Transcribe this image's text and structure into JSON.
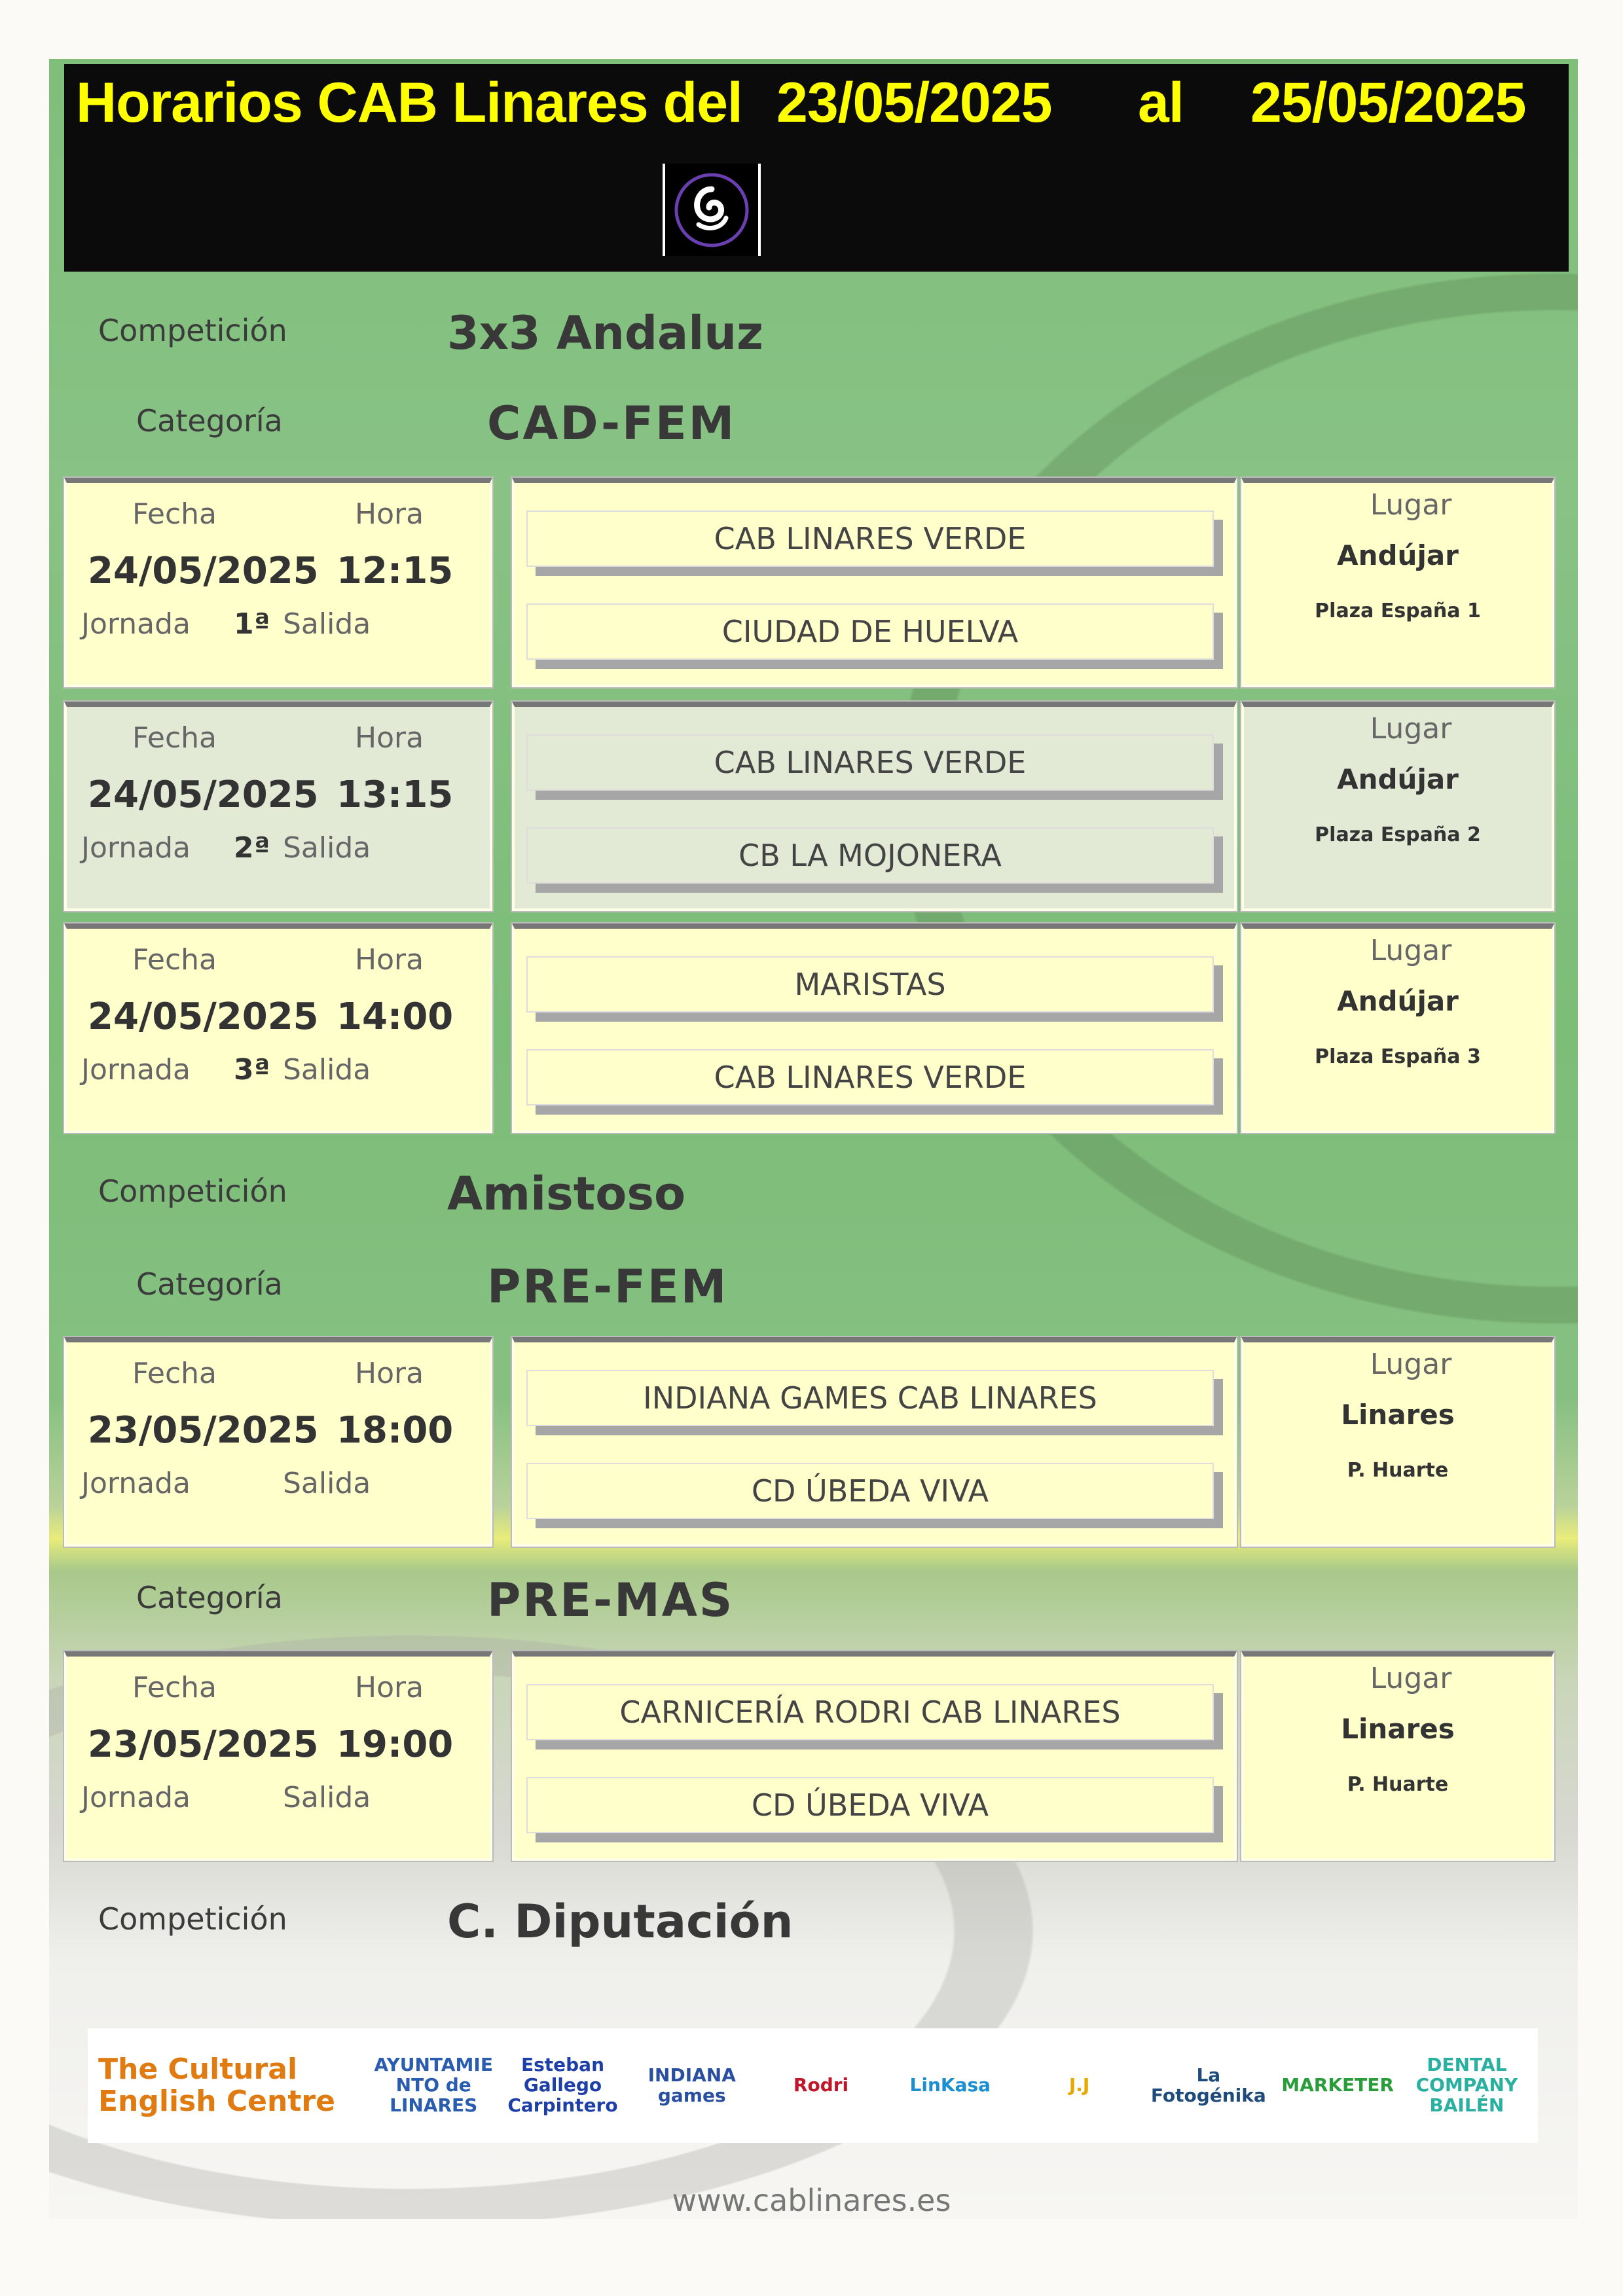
{
  "header": {
    "title": "Horarios CAB Linares del",
    "date_from": "23/05/2025",
    "al": "al",
    "date_to": "25/05/2025",
    "logo": "club-logo-icon"
  },
  "labels": {
    "competicion": "Competición",
    "categoria": "Categoría",
    "fecha": "Fecha",
    "hora": "Hora",
    "jornada": "Jornada",
    "salida": "Salida",
    "lugar": "Lugar"
  },
  "sections": [
    {
      "type": "competicion",
      "value": "3x3 Andaluz"
    },
    {
      "type": "categoria",
      "value": "CAD-FEM"
    },
    {
      "type": "match",
      "fecha": "24/05/2025",
      "hora": "12:15",
      "jornada": "1ª",
      "home": "CAB LINARES VERDE",
      "away": "CIUDAD DE HUELVA",
      "city": "Andújar",
      "venue": "Plaza España 1"
    },
    {
      "type": "match",
      "fecha": "24/05/2025",
      "hora": "13:15",
      "jornada": "2ª",
      "home": "CAB LINARES VERDE",
      "away": "CB LA MOJONERA",
      "city": "Andújar",
      "venue": "Plaza España 2",
      "alt": true
    },
    {
      "type": "match",
      "fecha": "24/05/2025",
      "hora": "14:00",
      "jornada": "3ª",
      "home": "MARISTAS",
      "away": "CAB LINARES VERDE",
      "city": "Andújar",
      "venue": "Plaza España 3"
    },
    {
      "type": "competicion",
      "value": "Amistoso"
    },
    {
      "type": "categoria",
      "value": "PRE-FEM"
    },
    {
      "type": "match",
      "fecha": "23/05/2025",
      "hora": "18:00",
      "jornada": "",
      "home": "INDIANA GAMES CAB LINARES",
      "away": "CD ÚBEDA VIVA",
      "city": "Linares",
      "venue": "P. Huarte"
    },
    {
      "type": "categoria",
      "value": "PRE-MAS"
    },
    {
      "type": "match",
      "fecha": "23/05/2025",
      "hora": "19:00",
      "jornada": "",
      "home": "CARNICERÍA RODRI CAB LINARES",
      "away": "CD ÚBEDA VIVA",
      "city": "Linares",
      "venue": "P. Huarte"
    },
    {
      "type": "competicion",
      "value": "C. Diputación"
    }
  ],
  "sponsors": [
    {
      "name": "The Cultural English Centre",
      "color": "#e07b12"
    },
    {
      "name": "AYUNTAMIENTO de LINARES",
      "color": "#2a5db0"
    },
    {
      "name": "Esteban Gallego Carpintero",
      "color": "#1f3fa8"
    },
    {
      "name": "INDIANA games",
      "color": "#2a4fa0"
    },
    {
      "name": "Rodri",
      "color": "#c0182a"
    },
    {
      "name": "LinKasa",
      "color": "#1b8fd0"
    },
    {
      "name": "J.J",
      "color": "#e6a800"
    },
    {
      "name": "La Fotogénika",
      "color": "#1f4b7a"
    },
    {
      "name": "MARKETER",
      "color": "#2a9d3a"
    },
    {
      "name": "DENTAL COMPANY BAILÉN",
      "color": "#2ab0a0"
    }
  ],
  "footer": {
    "url": "www.cablinares.es"
  }
}
